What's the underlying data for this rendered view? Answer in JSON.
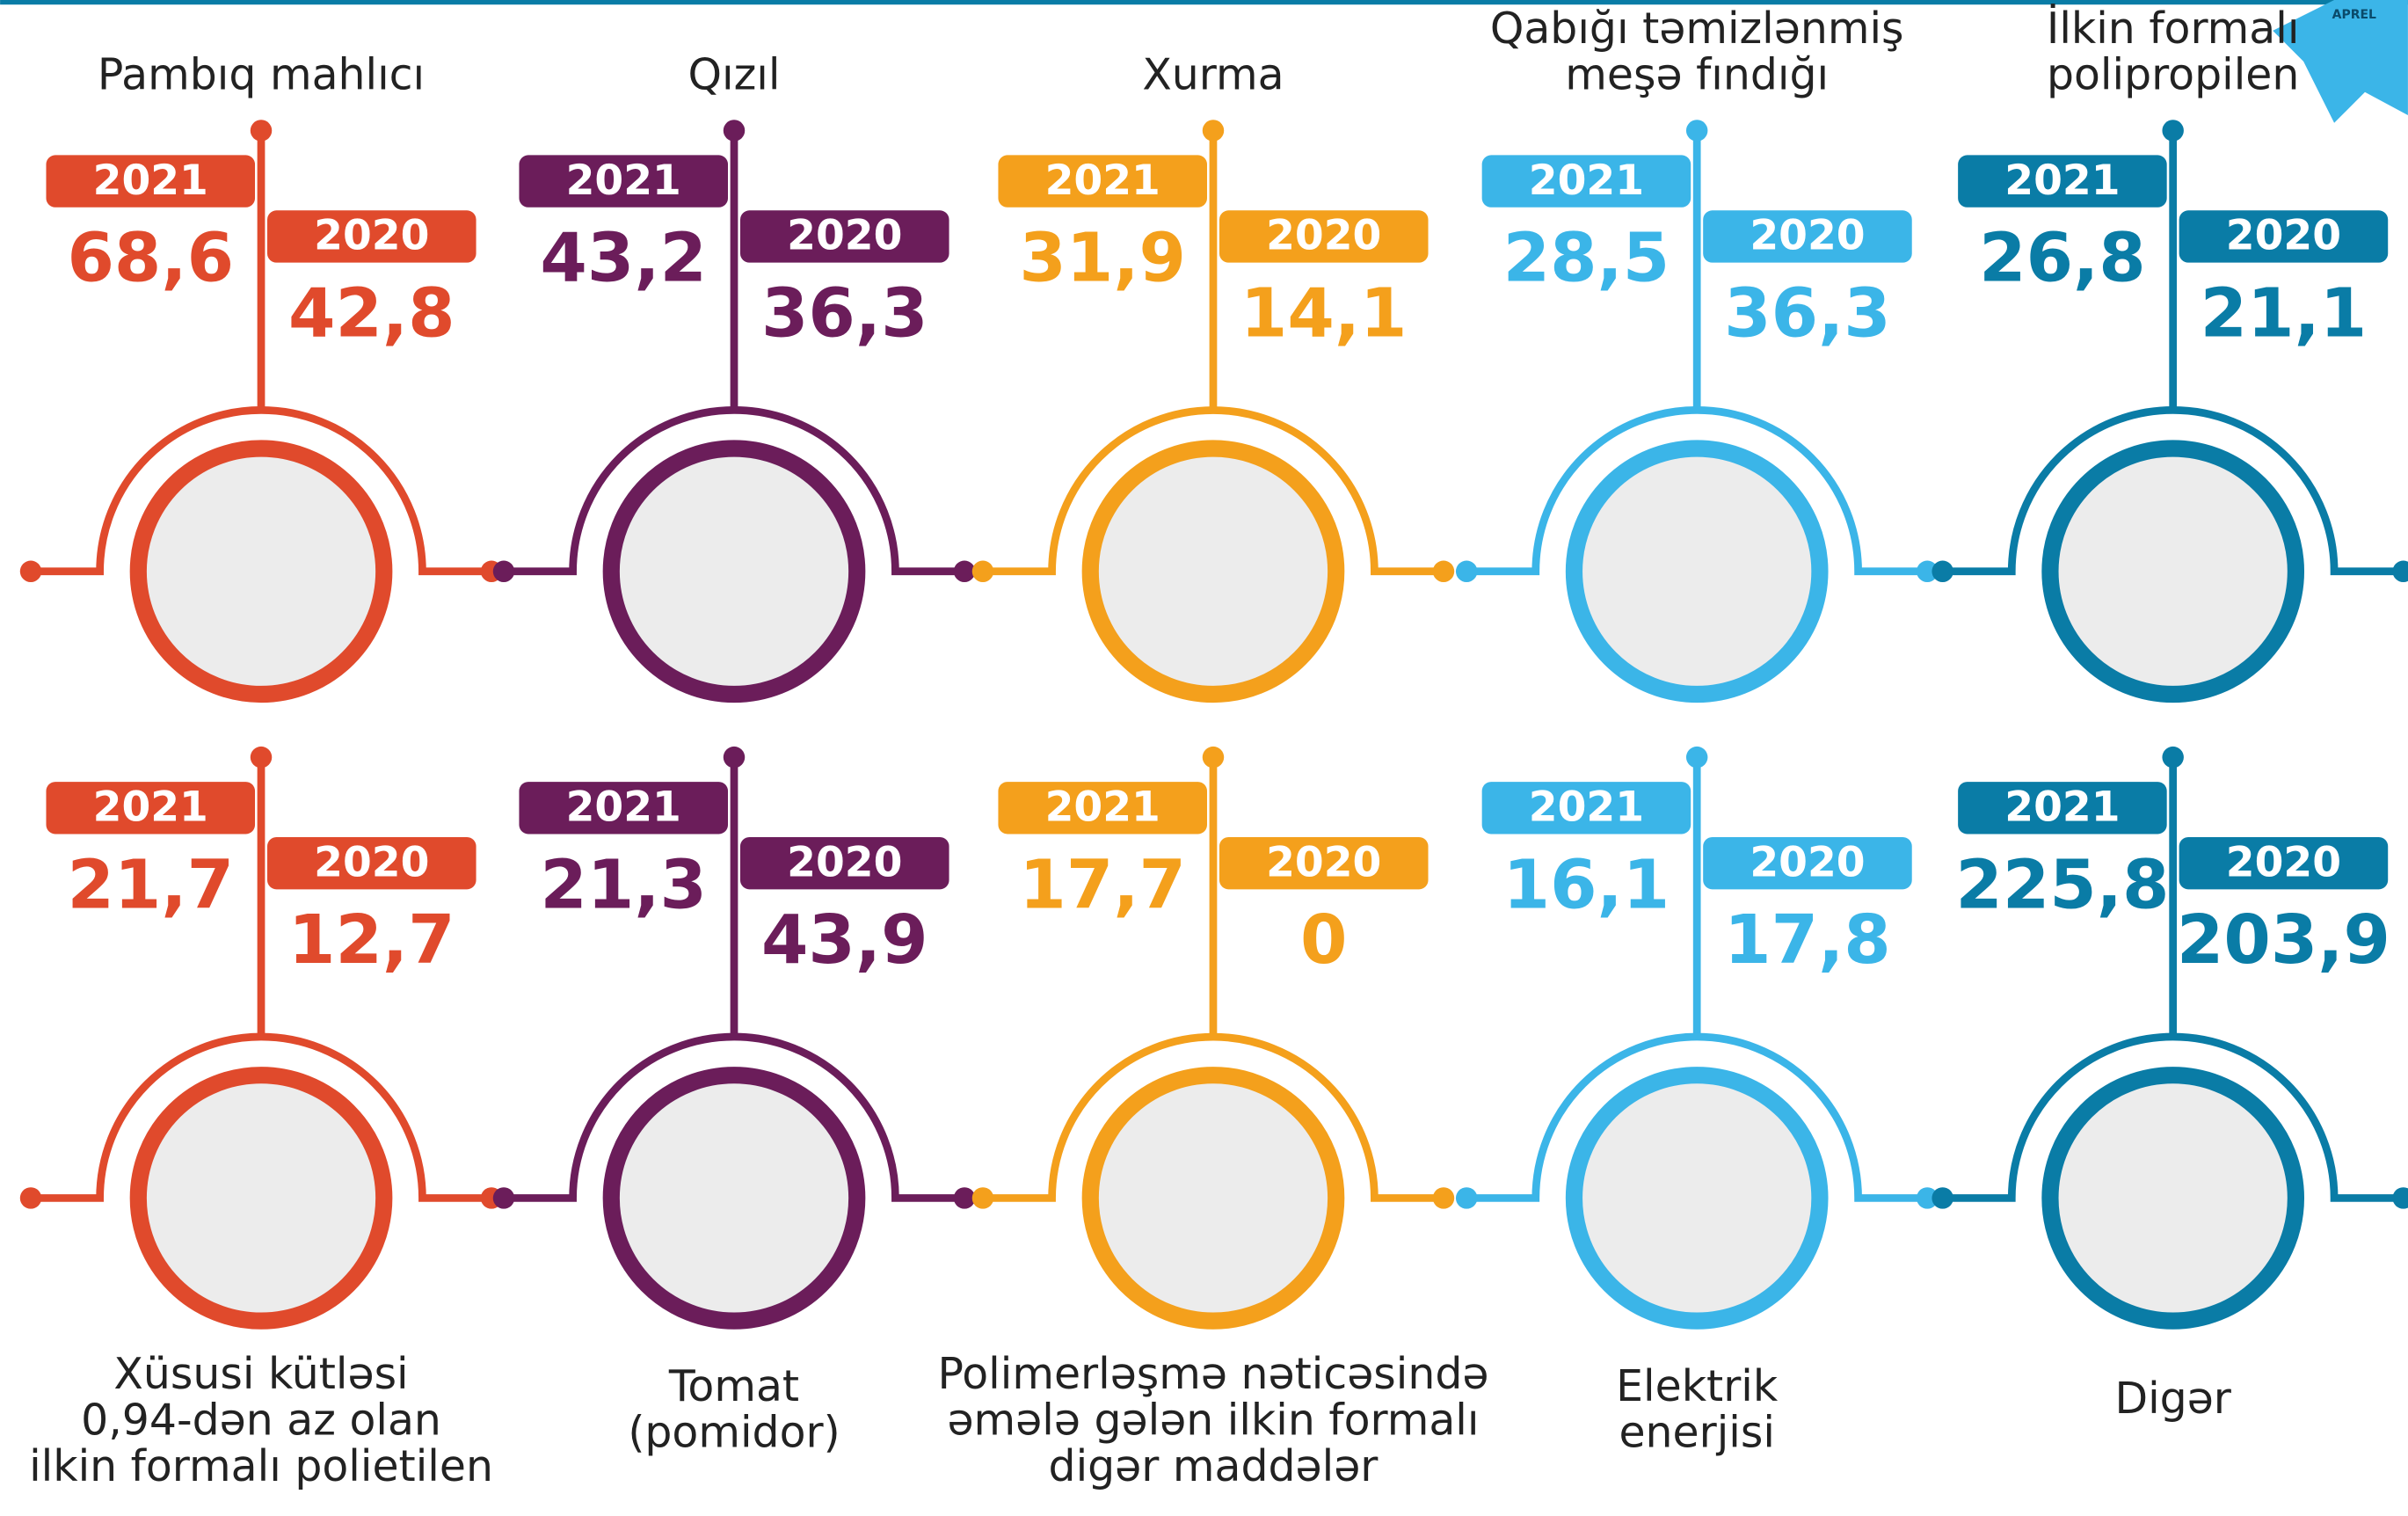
{
  "badge": "APREL",
  "items": [
    {
      "title": [
        "Pambıq mahlıcı"
      ],
      "color": "#e04a2c",
      "year_a": "2021",
      "value_a": "68,6",
      "year_b": "2020",
      "value_b": "42,8"
    },
    {
      "title": [
        "Qızıl"
      ],
      "color": "#6b1d5a",
      "year_a": "2021",
      "value_a": "43,2",
      "year_b": "2020",
      "value_b": "36,3"
    },
    {
      "title": [
        "Xurma"
      ],
      "color": "#f4a01c",
      "year_a": "2021",
      "value_a": "31,9",
      "year_b": "2020",
      "value_b": "14,1"
    },
    {
      "title": [
        "Qabığı təmizlənmiş",
        "meşə fındığı"
      ],
      "color": "#3bb5e8",
      "year_a": "2021",
      "value_a": "28,5",
      "year_b": "2020",
      "value_b": "36,3"
    },
    {
      "title": [
        "İlkin formalı",
        "polipropilen"
      ],
      "color": "#0a7ca6",
      "year_a": "2021",
      "value_a": "26,8",
      "year_b": "2020",
      "value_b": "21,1"
    },
    {
      "title": [
        "Xüsusi kütləsi",
        "0,94-dən az olan",
        "ilkin formalı polietilen"
      ],
      "color": "#e04a2c",
      "year_a": "2021",
      "value_a": "21,7",
      "year_b": "2020",
      "value_b": "12,7"
    },
    {
      "title": [
        "Tomat",
        "(pomidor)"
      ],
      "color": "#6b1d5a",
      "year_a": "2021",
      "value_a": "21,3",
      "year_b": "2020",
      "value_b": "43,9"
    },
    {
      "title": [
        "Polimerləşmə nəticəsində",
        "əmələ gələn ilkin formalı",
        "digər maddələr"
      ],
      "color": "#f4a01c",
      "year_a": "2021",
      "value_a": "17,7",
      "year_b": "2020",
      "value_b": "0"
    },
    {
      "title": [
        "Elektrik",
        "enerjisi"
      ],
      "color": "#3bb5e8",
      "year_a": "2021",
      "value_a": "16,1",
      "year_b": "2020",
      "value_b": "17,8"
    },
    {
      "title": [
        "Digər"
      ],
      "color": "#0a7ca6",
      "year_a": "2021",
      "value_a": "225,8",
      "year_b": "2020",
      "value_b": "203,9"
    }
  ]
}
